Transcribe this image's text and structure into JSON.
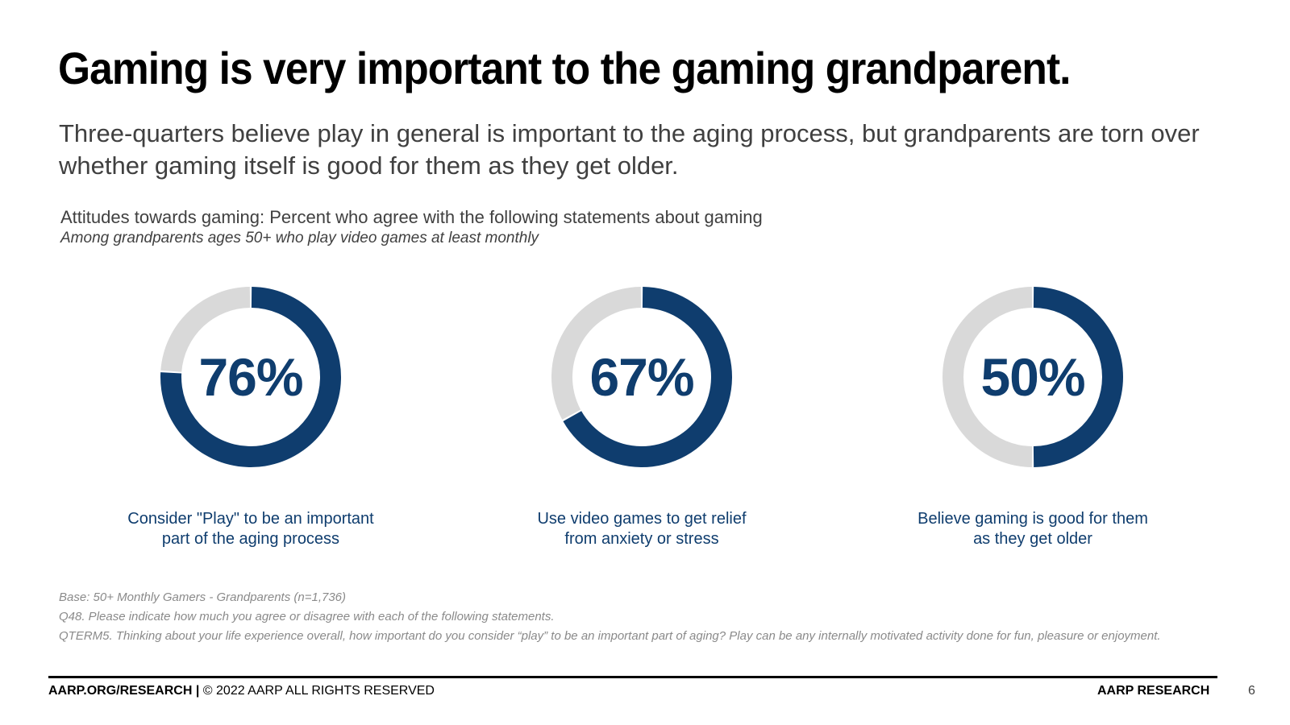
{
  "title": "Gaming is very important to the gaming grandparent.",
  "subtitle": "Three-quarters believe play in general is important to the aging process, but grandparents are torn over whether gaming itself is good for them as they get older.",
  "chart_caption": "Attitudes towards gaming: Percent who agree with the following statements about gaming",
  "chart_base": "Among grandparents ages 50+ who play video games at least monthly",
  "chart_data": {
    "type": "pie",
    "subtype": "donut",
    "title": "Attitudes towards gaming: Percent who agree with the following statements about gaming",
    "subtitle": "Among grandparents ages 50+ who play video games at least monthly",
    "unit": "%",
    "colors": {
      "agree": "#0f3d6e",
      "remainder": "#d9d9d9"
    },
    "items": [
      {
        "value": 76,
        "value_label": "76%",
        "label_line1": "Consider \"Play\" to be an important",
        "label_line2": "part of the aging process"
      },
      {
        "value": 67,
        "value_label": "67%",
        "label_line1": "Use video games to get relief",
        "label_line2": "from anxiety or stress"
      },
      {
        "value": 50,
        "value_label": "50%",
        "label_line1": "Believe gaming is good for them",
        "label_line2": "as they get older"
      }
    ]
  },
  "notes": [
    "Base: 50+ Monthly Gamers - Grandparents (n=1,736)",
    "Q48. Please indicate how much you agree or disagree with each of the following statements.",
    "QTERM5. Thinking about your life experience overall, how important do you consider “play” to be an important part of aging? Play can be any internally motivated activity done for fun, pleasure or enjoyment."
  ],
  "footer": {
    "site": "AARP.ORG/RESEARCH |",
    "copyright": "© 2022 AARP ALL RIGHTS RESERVED",
    "brand": "AARP RESEARCH",
    "page_number": "6"
  }
}
